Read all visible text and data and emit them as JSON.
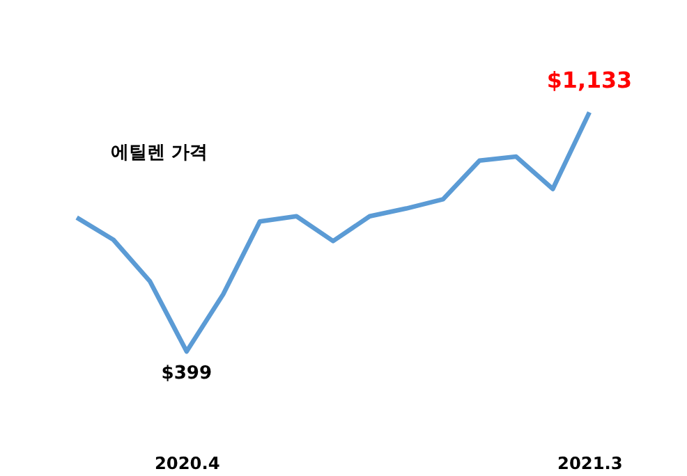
{
  "chart_data": {
    "type": "line",
    "title": "에틸렌 가격",
    "categories": [
      null,
      null,
      null,
      "2020.4",
      null,
      null,
      null,
      null,
      null,
      null,
      null,
      null,
      null,
      null,
      "2021.3"
    ],
    "series": [
      {
        "color": "#5b9bd5",
        "values": [
          810,
          742,
          614,
          399,
          575,
          798,
          814,
          738,
          814,
          838,
          866,
          985,
          997,
          898,
          1133
        ],
        "value_labels": [
          null,
          null,
          null,
          "$399",
          null,
          null,
          null,
          null,
          null,
          null,
          null,
          null,
          null,
          null,
          "$1,133"
        ]
      }
    ],
    "marker": "none",
    "grid": false
  }
}
